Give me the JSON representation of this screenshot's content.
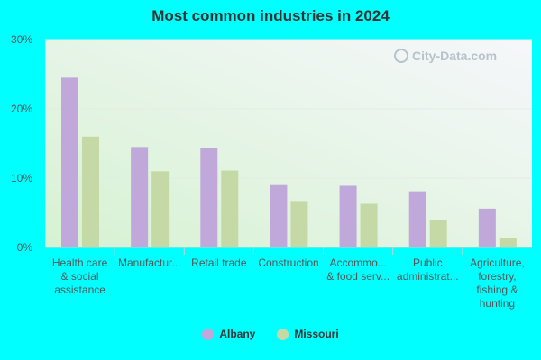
{
  "chart_data": {
    "type": "bar",
    "title": "Most common industries in 2024",
    "categories": [
      [
        "Health care",
        "& social",
        "assistance"
      ],
      [
        "Manufactur..."
      ],
      [
        "Retail trade"
      ],
      [
        "Construction"
      ],
      [
        "Accommo...",
        "& food serv..."
      ],
      [
        "Public",
        "administrat..."
      ],
      [
        "Agriculture,",
        "forestry,",
        "fishing &",
        "hunting"
      ]
    ],
    "series": [
      {
        "name": "Albany",
        "color": "#C0A8DA",
        "values": [
          24.5,
          14.5,
          14.3,
          9.0,
          8.9,
          8.1,
          5.6
        ]
      },
      {
        "name": "Missouri",
        "color": "#C5D9A6",
        "values": [
          16.0,
          11.0,
          11.1,
          6.7,
          6.3,
          4.0,
          1.4
        ]
      }
    ],
    "yticks": [
      "0%",
      "10%",
      "20%",
      "30%"
    ],
    "ylim": [
      0,
      30
    ],
    "legend_position": "bottom",
    "watermark": "City-Data.com"
  }
}
